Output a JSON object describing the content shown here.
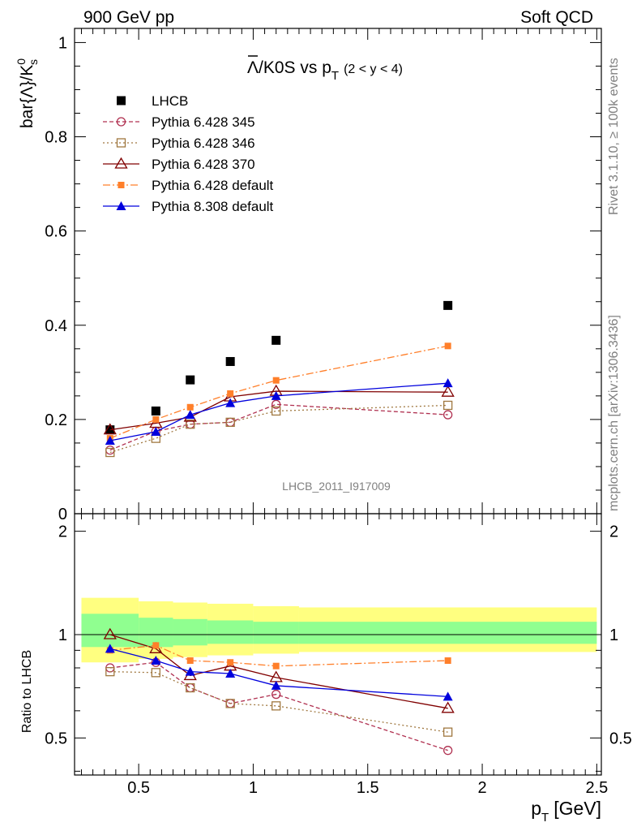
{
  "header": {
    "left": "900 GeV pp",
    "right": "Soft QCD"
  },
  "side_labels": {
    "rivet": "Rivet 3.1.10, ≥ 100k events",
    "mcplots": "mcplots.cern.ch [arXiv:1306.3436]"
  },
  "colors": {
    "lhcb": "#000000",
    "p345": "#b03050",
    "p346": "#a07840",
    "p370": "#800000",
    "p6def": "#ff7f2a",
    "p8def": "#0000dd",
    "band_outer": "#ffff80",
    "band_inner": "#90ff90"
  },
  "chart_data": [
    {
      "type": "scatter",
      "title_main": "Λ/K0S vs p",
      "title_sub": "T",
      "title_range": "(2 < y < 4)",
      "ylabel_main": "bar{Λ}/K",
      "ylabel_sup": "0",
      "ylabel_sub": "s",
      "watermark": "LHCB_2011_I917009",
      "xlim": [
        0.22,
        2.52
      ],
      "ylim": [
        0,
        1.03
      ],
      "yticks": [
        0,
        0.2,
        0.4,
        0.6,
        0.8,
        1
      ],
      "ytick_labels": [
        "0",
        "0.2",
        "0.4",
        "0.6",
        "0.8",
        "1"
      ],
      "series": [
        {
          "name": "LHCB",
          "style": "data",
          "color": "#000000",
          "x": [
            0.375,
            0.575,
            0.725,
            0.9,
            1.1,
            1.85
          ],
          "y": [
            0.178,
            0.218,
            0.284,
            0.323,
            0.368,
            0.442
          ]
        },
        {
          "name": "Pythia 6.428 345",
          "style": "p345",
          "color": "#b03050",
          "x": [
            0.375,
            0.575,
            0.725,
            0.9,
            1.1,
            1.85
          ],
          "y": [
            0.135,
            0.175,
            0.19,
            0.194,
            0.232,
            0.21
          ]
        },
        {
          "name": "Pythia 6.428 346",
          "style": "p346",
          "color": "#a07840",
          "x": [
            0.375,
            0.575,
            0.725,
            0.9,
            1.1,
            1.85
          ],
          "y": [
            0.13,
            0.16,
            0.19,
            0.194,
            0.218,
            0.23
          ]
        },
        {
          "name": "Pythia 6.428 370",
          "style": "p370",
          "color": "#800000",
          "x": [
            0.375,
            0.575,
            0.725,
            0.9,
            1.1,
            1.85
          ],
          "y": [
            0.178,
            0.192,
            0.205,
            0.248,
            0.26,
            0.258
          ]
        },
        {
          "name": "Pythia 6.428 default",
          "style": "p6def",
          "color": "#ff7f2a",
          "x": [
            0.375,
            0.575,
            0.725,
            0.9,
            1.1,
            1.85
          ],
          "y": [
            0.16,
            0.2,
            0.226,
            0.255,
            0.283,
            0.356
          ]
        },
        {
          "name": "Pythia 8.308 default",
          "style": "p8def",
          "color": "#0000dd",
          "x": [
            0.375,
            0.575,
            0.725,
            0.9,
            1.1,
            1.85
          ],
          "y": [
            0.155,
            0.174,
            0.21,
            0.235,
            0.25,
            0.277
          ]
        }
      ]
    },
    {
      "type": "scatter",
      "ylabel": "Ratio to LHCB",
      "xlabel_main": "p",
      "xlabel_sub": "T",
      "xlabel_unit": "[GeV]",
      "xlim": [
        0.22,
        2.52
      ],
      "ylim": [
        0.39,
        2.25
      ],
      "xticks": [
        0.5,
        1,
        1.5,
        2,
        2.5
      ],
      "xtick_labels": [
        "0.5",
        "1",
        "1.5",
        "2",
        "2.5"
      ],
      "yticks": [
        0.5,
        1,
        2
      ],
      "ytick_labels": [
        "0.5",
        "1",
        "2"
      ],
      "bands": [
        {
          "x0": 0.25,
          "x1": 0.5,
          "outer": [
            0.83,
            1.28
          ],
          "inner": [
            0.92,
            1.15
          ]
        },
        {
          "x0": 0.5,
          "x1": 0.65,
          "outer": [
            0.85,
            1.25
          ],
          "inner": [
            0.92,
            1.12
          ]
        },
        {
          "x0": 0.65,
          "x1": 0.8,
          "outer": [
            0.86,
            1.24
          ],
          "inner": [
            0.93,
            1.11
          ]
        },
        {
          "x0": 0.8,
          "x1": 1.0,
          "outer": [
            0.87,
            1.23
          ],
          "inner": [
            0.94,
            1.1
          ]
        },
        {
          "x0": 1.0,
          "x1": 1.2,
          "outer": [
            0.88,
            1.21
          ],
          "inner": [
            0.94,
            1.09
          ]
        },
        {
          "x0": 1.2,
          "x1": 2.5,
          "outer": [
            0.89,
            1.2
          ],
          "inner": [
            0.94,
            1.09
          ]
        }
      ],
      "series": [
        {
          "name": "Pythia 6.428 345",
          "style": "p345",
          "color": "#b03050",
          "x": [
            0.375,
            0.575,
            0.725,
            0.9,
            1.1,
            1.85
          ],
          "y": [
            0.8,
            0.83,
            0.7,
            0.63,
            0.67,
            0.46
          ]
        },
        {
          "name": "Pythia 6.428 346",
          "style": "p346",
          "color": "#a07840",
          "x": [
            0.375,
            0.575,
            0.725,
            0.9,
            1.1,
            1.85
          ],
          "y": [
            0.78,
            0.775,
            0.7,
            0.63,
            0.62,
            0.52
          ]
        },
        {
          "name": "Pythia 6.428 370",
          "style": "p370",
          "color": "#800000",
          "x": [
            0.375,
            0.575,
            0.725,
            0.9,
            1.1,
            1.85
          ],
          "y": [
            1.0,
            0.91,
            0.76,
            0.81,
            0.75,
            0.61
          ]
        },
        {
          "name": "Pythia 6.428 default",
          "style": "p6def",
          "color": "#ff7f2a",
          "x": [
            0.375,
            0.575,
            0.725,
            0.9,
            1.1,
            1.85
          ],
          "y": [
            0.9,
            0.93,
            0.84,
            0.83,
            0.81,
            0.84
          ]
        },
        {
          "name": "Pythia 8.308 default",
          "style": "p8def",
          "color": "#0000dd",
          "x": [
            0.375,
            0.575,
            0.725,
            0.9,
            1.1,
            1.85
          ],
          "y": [
            0.91,
            0.84,
            0.78,
            0.77,
            0.71,
            0.66
          ]
        }
      ]
    }
  ]
}
